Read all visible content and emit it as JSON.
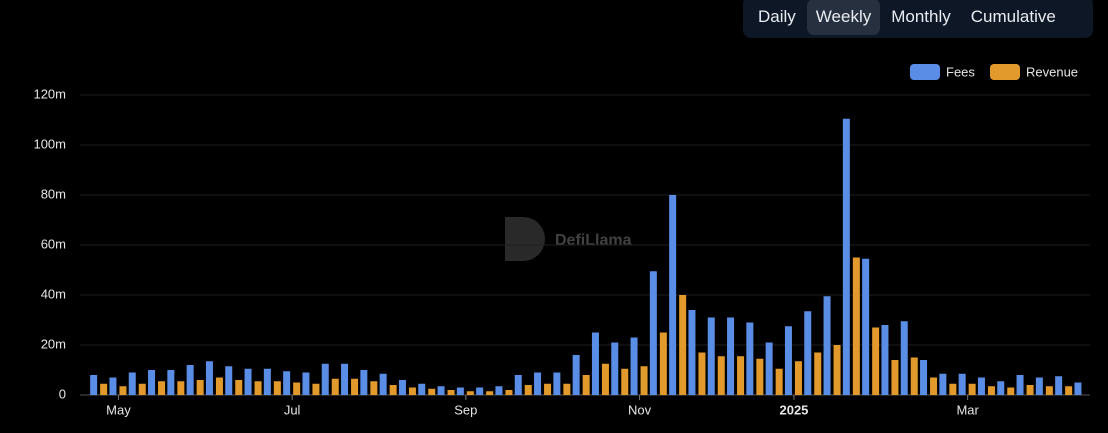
{
  "tabs": [
    "Daily",
    "Weekly",
    "Monthly",
    "Cumulative"
  ],
  "selected_tab": 1,
  "watermark": "DefiLlama",
  "chart_data": {
    "type": "bar",
    "categories": [
      null,
      "May",
      null,
      null,
      null,
      null,
      null,
      null,
      null,
      null,
      "Jul",
      null,
      null,
      null,
      null,
      null,
      null,
      null,
      null,
      "Sep",
      null,
      null,
      null,
      null,
      null,
      null,
      null,
      null,
      "Nov",
      null,
      null,
      null,
      null,
      null,
      null,
      null,
      "2025",
      null,
      null,
      null,
      null,
      null,
      null,
      null,
      null,
      "Mar",
      null,
      null,
      null,
      null,
      null,
      null
    ],
    "series": [
      {
        "name": "Fees",
        "color": "#5a8ee6",
        "values": [
          8,
          7,
          9,
          10,
          10,
          12,
          13.5,
          11.5,
          10.5,
          10.5,
          9.5,
          9,
          12.5,
          12.5,
          10,
          8.5,
          6,
          4.5,
          3.5,
          3,
          3,
          3.5,
          8,
          9,
          9,
          16,
          25,
          21,
          23,
          49.5,
          80,
          34,
          31,
          31,
          29,
          21,
          27.5,
          33.5,
          39.5,
          110.5,
          54.5,
          28,
          29.5,
          14,
          8.5,
          8.5,
          7,
          5.5,
          8,
          7,
          7.5,
          5
        ]
      },
      {
        "name": "Revenue",
        "color": "#e39a2d",
        "values": [
          4.5,
          3.5,
          4.5,
          5.5,
          5.5,
          6,
          7,
          6,
          5.5,
          5.5,
          5,
          4.5,
          6.5,
          6.5,
          5.5,
          4,
          3,
          2.5,
          2,
          1.5,
          1.5,
          2,
          4,
          4.5,
          4.5,
          8,
          12.5,
          10.5,
          11.5,
          25,
          40,
          17,
          15.5,
          15.5,
          14.5,
          10.5,
          13.5,
          17,
          20,
          55,
          27,
          14,
          15,
          7,
          4.5,
          4.5,
          3.5,
          3,
          4,
          3.5,
          3.5,
          null
        ]
      }
    ],
    "ylim": [
      0,
      120
    ],
    "yticks": [
      0,
      {
        "value": 20,
        "label": "20m"
      },
      {
        "value": 40,
        "label": "40m"
      },
      {
        "value": 60,
        "label": "60m"
      },
      {
        "value": 80,
        "label": "80m"
      },
      {
        "value": 100,
        "label": "100m"
      },
      {
        "value": 120,
        "label": "120m"
      }
    ],
    "grid": true,
    "legend": "top-right"
  }
}
